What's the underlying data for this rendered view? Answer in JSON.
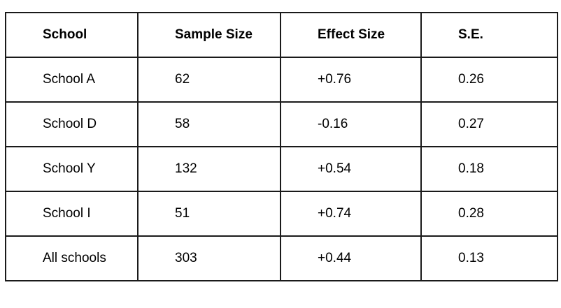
{
  "table": {
    "headers": [
      "School",
      "Sample Size",
      "Effect Size",
      "S.E."
    ],
    "rows": [
      [
        "School A",
        "62",
        "+0.76",
        "0.26"
      ],
      [
        "School D",
        "58",
        "-0.16",
        "0.27"
      ],
      [
        "School Y",
        "132",
        "+0.54",
        "0.18"
      ],
      [
        "School I",
        "51",
        "+0.74",
        "0.28"
      ],
      [
        "All schools",
        "303",
        "+0.44",
        "0.13"
      ]
    ]
  }
}
